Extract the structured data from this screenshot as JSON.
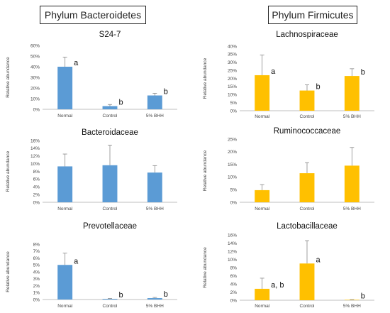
{
  "headers": {
    "left": "Phylum Bacteroidetes",
    "right": "Phylum Firmicutes"
  },
  "colors": {
    "bacteroidetes": "#5b9bd5",
    "firmicutes": "#ffc000",
    "error_bar": "#888888",
    "axis": "#bfbfbf"
  },
  "chart_data": [
    {
      "type": "bar",
      "title": "S24-7",
      "ylabel": "Relative abundance",
      "categories": [
        "Normal",
        "Control",
        "5% BHH"
      ],
      "values": [
        40,
        3,
        13
      ],
      "errors": [
        9,
        1.5,
        2
      ],
      "significance": [
        "a",
        "b",
        "b"
      ],
      "ylim": [
        0,
        60
      ],
      "yticks": [
        0,
        10,
        20,
        30,
        40,
        50,
        60
      ],
      "tick_labels": [
        "0%",
        "10%",
        "20%",
        "30%",
        "40%",
        "50%",
        "60%"
      ],
      "color": "#5b9bd5"
    },
    {
      "type": "bar",
      "title": "Bacteroidaceae",
      "ylabel": "Relative abundance",
      "categories": [
        "Normal",
        "Control",
        "5% BHH"
      ],
      "values": [
        9.3,
        9.6,
        7.7
      ],
      "errors": [
        3.2,
        5.2,
        1.8
      ],
      "significance": [
        "",
        "",
        ""
      ],
      "ylim": [
        0,
        16
      ],
      "yticks": [
        0,
        2,
        4,
        6,
        8,
        10,
        12,
        14,
        16
      ],
      "tick_labels": [
        "0%",
        "2%",
        "4%",
        "6%",
        "8%",
        "10%",
        "12%",
        "14%",
        "16%"
      ],
      "color": "#5b9bd5"
    },
    {
      "type": "bar",
      "title": "Prevotellaceae",
      "ylabel": "Relative abundance",
      "categories": [
        "Normal",
        "Control",
        "5% BHH"
      ],
      "values": [
        5.0,
        0.1,
        0.2
      ],
      "errors": [
        1.7,
        0.05,
        0.1
      ],
      "significance": [
        "a",
        "b",
        "b"
      ],
      "ylim": [
        0,
        8
      ],
      "yticks": [
        0,
        1,
        2,
        3,
        4,
        5,
        6,
        7,
        8
      ],
      "tick_labels": [
        "0%",
        "1%",
        "2%",
        "3%",
        "4%",
        "5%",
        "6%",
        "7%",
        "8%"
      ],
      "color": "#5b9bd5"
    },
    {
      "type": "bar",
      "title": "Lachnospiraceae",
      "ylabel": "Relative abundance",
      "categories": [
        "Normal",
        "Control",
        "5% BHH"
      ],
      "values": [
        22,
        12.5,
        21.5
      ],
      "errors": [
        12.5,
        3.5,
        4.5
      ],
      "significance": [
        "a",
        "b",
        "b"
      ],
      "ylim": [
        0,
        40
      ],
      "yticks": [
        0,
        5,
        10,
        15,
        20,
        25,
        30,
        35,
        40
      ],
      "tick_labels": [
        "0%",
        "5%",
        "10%",
        "15%",
        "20%",
        "25%",
        "30%",
        "35%",
        "40%"
      ],
      "color": "#ffc000"
    },
    {
      "type": "bar",
      "title": "Ruminococcaceae",
      "ylabel": "Relative abundance",
      "categories": [
        "Normal",
        "Control",
        "5% BHH"
      ],
      "values": [
        4.8,
        11.5,
        14.5
      ],
      "errors": [
        2.2,
        4.2,
        7.2
      ],
      "significance": [
        "",
        "",
        ""
      ],
      "ylim": [
        0,
        25
      ],
      "yticks": [
        0,
        5,
        10,
        15,
        20,
        25
      ],
      "tick_labels": [
        "0%",
        "5%",
        "10%",
        "15%",
        "20%",
        "25%"
      ],
      "color": "#ffc000"
    },
    {
      "type": "bar",
      "title": "Lactobacillaceae",
      "ylabel": "Relative abundance",
      "categories": [
        "Normal",
        "Control",
        "5% BHH"
      ],
      "values": [
        2.8,
        9.0,
        0.1
      ],
      "errors": [
        2.6,
        5.6,
        0.05
      ],
      "significance": [
        "a, b",
        "a",
        "b"
      ],
      "ylim": [
        0,
        16
      ],
      "yticks": [
        0,
        2,
        4,
        6,
        8,
        10,
        12,
        14,
        16
      ],
      "tick_labels": [
        "0%",
        "2%",
        "4%",
        "6%",
        "8%",
        "10%",
        "12%",
        "14%",
        "16%"
      ],
      "color": "#ffc000"
    }
  ]
}
